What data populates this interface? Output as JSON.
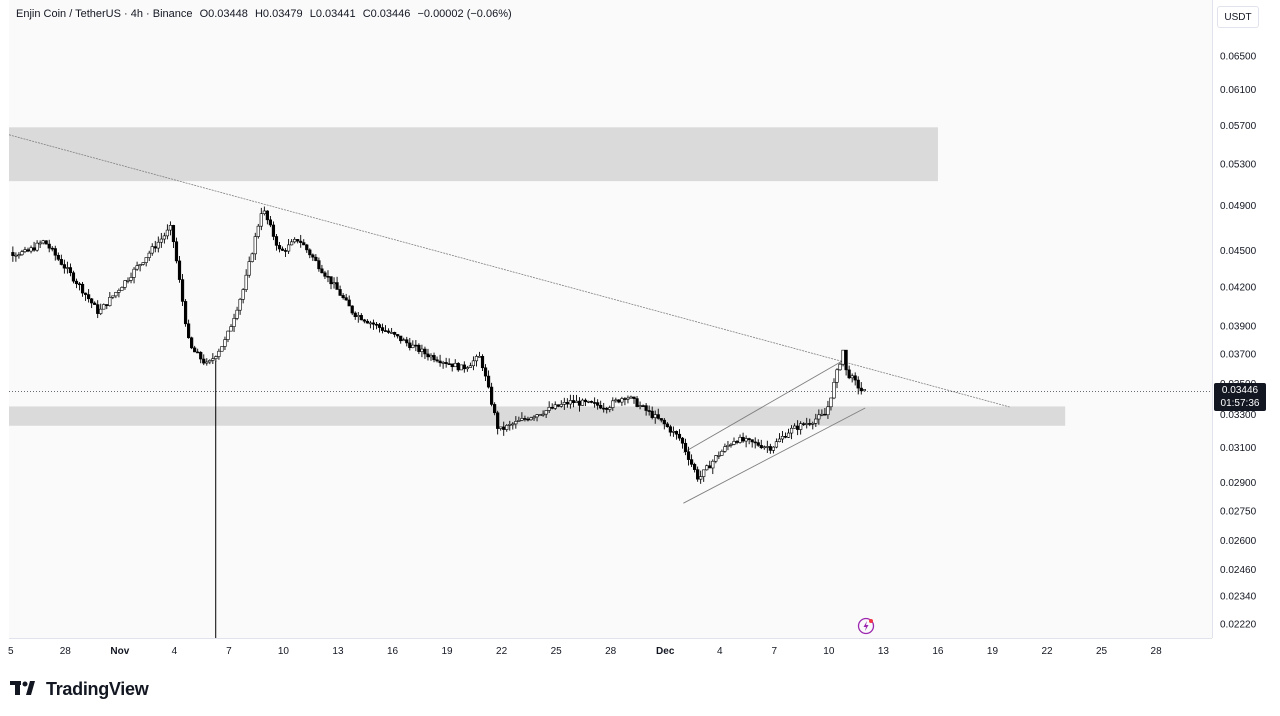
{
  "legend": {
    "symbol": "Enjin Coin / TetherUS · 4h · Binance",
    "open": "O0.03448",
    "high": "H0.03479",
    "low": "L0.03441",
    "close": "C0.03446",
    "change": "−0.00002 (−0.06%)"
  },
  "price_axis": {
    "currency": "USDT",
    "current_price": "0.03446",
    "countdown": "01:57:36",
    "labels": [
      "0.06500",
      "0.06100",
      "0.05700",
      "0.05300",
      "0.04900",
      "0.04500",
      "0.04200",
      "0.03900",
      "0.03700",
      "0.03500",
      "0.03300",
      "0.03100",
      "0.02900",
      "0.02750",
      "0.02600",
      "0.02460",
      "0.02340",
      "0.02220"
    ]
  },
  "time_axis": {
    "labels": [
      "5",
      "28",
      "Nov",
      "4",
      "7",
      "10",
      "13",
      "16",
      "19",
      "22",
      "25",
      "28",
      "Dec",
      "4",
      "7",
      "10",
      "13",
      "16",
      "19",
      "22",
      "25",
      "28"
    ],
    "bold": [
      "Nov",
      "Dec"
    ]
  },
  "brand": {
    "name": "TradingView"
  },
  "colors": {
    "bull": "#089981",
    "bear": "#000000",
    "candle_line": "#000000",
    "zone": "#d4d4d4",
    "trendline": "#808080",
    "background": "#fafafa",
    "price_tag": "#131722"
  },
  "icons": {
    "alert": "lightning-alert-icon",
    "logo": "tradingview-logo-icon"
  },
  "chart_data": {
    "type": "candlestick",
    "symbol": "Enjin Coin / TetherUS",
    "interval": "4h",
    "exchange": "Binance",
    "y_scale": "log",
    "ylim": [
      0.0218,
      0.0675
    ],
    "x_ticks": [
      "5",
      "28",
      "Nov",
      "4",
      "7",
      "10",
      "13",
      "16",
      "19",
      "22",
      "25",
      "28",
      "Dec",
      "4",
      "7",
      "10",
      "13",
      "16",
      "19",
      "22",
      "25",
      "28"
    ],
    "key_points": [
      {
        "x": "Oct 26",
        "y": 0.0448
      },
      {
        "x": "Oct 27",
        "y": 0.0458
      },
      {
        "x": "Oct 29",
        "y": 0.042
      },
      {
        "x": "Oct 30",
        "y": 0.04
      },
      {
        "x": "Nov 2",
        "y": 0.0452
      },
      {
        "x": "Nov 3",
        "y": 0.047
      },
      {
        "x": "Nov 4",
        "y": 0.0375
      },
      {
        "x": "Nov 5",
        "y": 0.0362
      },
      {
        "x": "Nov 6",
        "y": 0.038
      },
      {
        "x": "Nov 7",
        "y": 0.042
      },
      {
        "x": "Nov 8",
        "y": 0.0488
      },
      {
        "x": "Nov 9",
        "y": 0.0448
      },
      {
        "x": "Nov 10",
        "y": 0.046
      },
      {
        "x": "Nov 12",
        "y": 0.042
      },
      {
        "x": "Nov 13",
        "y": 0.04
      },
      {
        "x": "Nov 15",
        "y": 0.0385
      },
      {
        "x": "Nov 17",
        "y": 0.037
      },
      {
        "x": "Nov 19",
        "y": 0.036
      },
      {
        "x": "Nov 20",
        "y": 0.0368
      },
      {
        "x": "Nov 21",
        "y": 0.032
      },
      {
        "x": "Nov 23",
        "y": 0.033
      },
      {
        "x": "Nov 25",
        "y": 0.0338
      },
      {
        "x": "Nov 27",
        "y": 0.0335
      },
      {
        "x": "Nov 28",
        "y": 0.0342
      },
      {
        "x": "Nov 30",
        "y": 0.0325
      },
      {
        "x": "Dec 1",
        "y": 0.0315
      },
      {
        "x": "Dec 2",
        "y": 0.0292
      },
      {
        "x": "Dec 3",
        "y": 0.0305
      },
      {
        "x": "Dec 4",
        "y": 0.0315
      },
      {
        "x": "Dec 6",
        "y": 0.031
      },
      {
        "x": "Dec 7",
        "y": 0.032
      },
      {
        "x": "Dec 9",
        "y": 0.033
      },
      {
        "x": "Dec 10",
        "y": 0.0375
      },
      {
        "x": "Dec 10",
        "y": 0.036
      },
      {
        "x": "Dec 11",
        "y": 0.03446
      }
    ],
    "spike_low": {
      "x": "Nov 5",
      "y": 0.0222
    },
    "current_price": 0.03446,
    "zones": [
      {
        "from": 0.0513,
        "to": 0.0568,
        "x_start": "Oct 24",
        "x_end": "Dec 15"
      },
      {
        "from": 0.0323,
        "to": 0.0335,
        "x_start": "Oct 24",
        "x_end": "Dec 22"
      }
    ],
    "trendlines": [
      {
        "x": [
          "Oct 24",
          "Dec 19"
        ],
        "y": [
          0.056,
          0.03345
        ]
      },
      {
        "x": [
          "Dec 1",
          "Dec 10"
        ],
        "y": [
          0.0307,
          0.0367
        ]
      },
      {
        "x": [
          "Dec 1",
          "Dec 11"
        ],
        "y": [
          0.0279,
          0.0334
        ]
      }
    ],
    "grid": false,
    "legend": "top-left"
  }
}
